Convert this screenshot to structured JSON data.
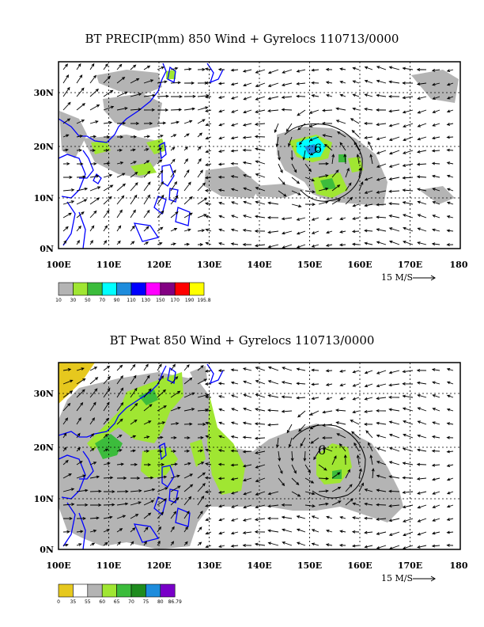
{
  "panels": [
    {
      "title": "BT PRECIP(mm) 850 Wind + Gyrelocs 110713/0000",
      "storm_marker": "6",
      "vector_scale_label": "15 M/S",
      "colorbar": {
        "colors": [
          "#b4b4b4",
          "#a0e632",
          "#3cbc3c",
          "#00ffff",
          "#1e8cdc",
          "#0000ff",
          "#ff00ff",
          "#820082",
          "#ff0000",
          "#ffff00"
        ],
        "labels": [
          "10",
          "30",
          "50",
          "70",
          "90",
          "110",
          "130",
          "150",
          "170",
          "190",
          "195.8"
        ]
      }
    },
    {
      "title": "BT Pwat 850 Wind + Gyrelocs 110713/0000",
      "storm_marker": "6",
      "vector_scale_label": "15 M/S",
      "colorbar": {
        "colors": [
          "#e6c81e",
          "#ffffff",
          "#b4b4b4",
          "#a0e632",
          "#3cbc3c",
          "#1e8c1e",
          "#1e8cdc",
          "#7800c8"
        ],
        "labels": [
          "0",
          "35",
          "55",
          "60",
          "65",
          "70",
          "75",
          "80",
          "86.79"
        ]
      }
    }
  ],
  "map": {
    "x_labels": [
      "100E",
      "110E",
      "120E",
      "130E",
      "140E",
      "150E",
      "160E",
      "170E",
      "180"
    ],
    "y_labels": [
      "0N",
      "10N",
      "20N",
      "30N"
    ],
    "lon_range": [
      100,
      180
    ],
    "lat_range": [
      0,
      36
    ],
    "colors": {
      "coastline": "#0000ff",
      "grid": "#000000"
    }
  }
}
